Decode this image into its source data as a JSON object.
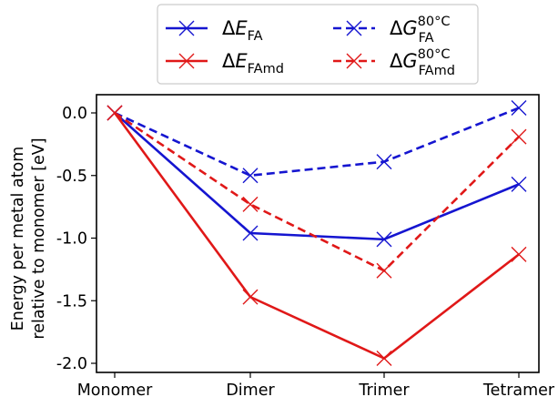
{
  "chart_data": {
    "type": "line",
    "categories": [
      "Monomer",
      "Dimer",
      "Trimer",
      "Tetramer"
    ],
    "ylabel_line1": "Energy per metal atom",
    "ylabel_line2": "relative to monomer [eV]",
    "ylim": [
      -2.05,
      0.15
    ],
    "yticks": [
      0.0,
      -0.5,
      -1.0,
      -1.5,
      -2.0
    ],
    "ytick_labels": [
      "0.0",
      "-0.5",
      "-1.0",
      "-1.5",
      "-2.0"
    ],
    "grid": false,
    "legend_position": "top-center",
    "series": [
      {
        "name": "ΔE_FA",
        "base": "ΔE",
        "sub": "FA",
        "sup": "",
        "color": "#1515d0",
        "dashed": false,
        "values": [
          0.0,
          -0.96,
          -1.01,
          -0.57
        ]
      },
      {
        "name": "ΔE_FAmd",
        "base": "ΔE",
        "sub": "FAmd",
        "sup": "",
        "color": "#e01818",
        "dashed": false,
        "values": [
          0.0,
          -1.47,
          -1.96,
          -1.13
        ]
      },
      {
        "name": "ΔG_FA^80°C",
        "base": "ΔG",
        "sub": "FA",
        "sup": "80°C",
        "color": "#1515d0",
        "dashed": true,
        "values": [
          0.0,
          -0.5,
          -0.39,
          0.04
        ]
      },
      {
        "name": "ΔG_FAmd^80°C",
        "base": "ΔG",
        "sub": "FAmd",
        "sup": "80°C",
        "color": "#e01818",
        "dashed": true,
        "values": [
          0.0,
          -0.73,
          -1.26,
          -0.19
        ]
      }
    ]
  }
}
